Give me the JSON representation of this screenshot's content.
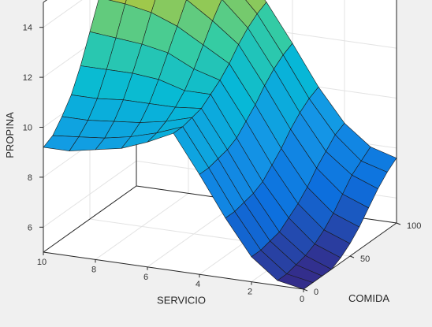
{
  "chart_data": {
    "type": "surface",
    "xlabel": "SERVICIO",
    "ylabel": "COMIDA",
    "zlabel": "PROPINA",
    "servicio_ticks": [
      "10",
      "8",
      "6",
      "4",
      "2",
      "0"
    ],
    "comida_ticks": [
      "0",
      "50",
      "100"
    ],
    "propina_ticks": [
      "6",
      "8",
      "10",
      "12",
      "14"
    ],
    "servicio_range": [
      0,
      10
    ],
    "comida_range": [
      0,
      100
    ],
    "propina_range": [
      5,
      15
    ],
    "servicio": [
      0,
      1,
      2,
      3,
      4,
      5,
      6,
      7,
      8,
      9,
      10
    ],
    "comida": [
      0,
      10,
      20,
      30,
      40,
      50,
      60,
      70,
      80,
      90,
      100
    ],
    "propina": [
      [
        5.0,
        5.0,
        5.0,
        5.0,
        5.2,
        5.5,
        5.9,
        6.4,
        6.9,
        7.3,
        7.6
      ],
      [
        5.2,
        5.2,
        5.3,
        5.4,
        5.6,
        5.9,
        6.3,
        6.8,
        7.3,
        7.6,
        7.9
      ],
      [
        6.0,
        6.0,
        6.1,
        6.2,
        6.5,
        6.8,
        7.2,
        7.7,
        8.1,
        8.5,
        8.7
      ],
      [
        7.4,
        7.4,
        7.5,
        7.6,
        7.8,
        8.2,
        8.6,
        9.1,
        9.5,
        9.8,
        10.0
      ],
      [
        9.0,
        9.0,
        9.1,
        9.2,
        9.4,
        9.8,
        10.2,
        10.7,
        11.1,
        11.4,
        11.6
      ],
      [
        10.5,
        10.5,
        10.6,
        10.7,
        11.0,
        11.3,
        11.7,
        12.2,
        12.6,
        12.9,
        13.1
      ],
      [
        10.0,
        10.1,
        10.3,
        10.6,
        11.0,
        11.6,
        12.3,
        13.0,
        13.6,
        14.0,
        14.3
      ],
      [
        9.6,
        9.8,
        10.1,
        10.6,
        11.3,
        12.1,
        12.9,
        13.7,
        14.4,
        14.9,
        15.2
      ],
      [
        9.4,
        9.6,
        10.0,
        10.6,
        11.4,
        12.3,
        13.3,
        14.2,
        14.9,
        15.4,
        15.8
      ],
      [
        9.2,
        9.5,
        9.9,
        10.5,
        11.4,
        12.4,
        13.5,
        14.5,
        15.3,
        15.8,
        16.1
      ],
      [
        9.2,
        9.4,
        9.9,
        10.5,
        11.4,
        12.5,
        13.6,
        14.6,
        15.4,
        15.9,
        16.2
      ]
    ]
  }
}
